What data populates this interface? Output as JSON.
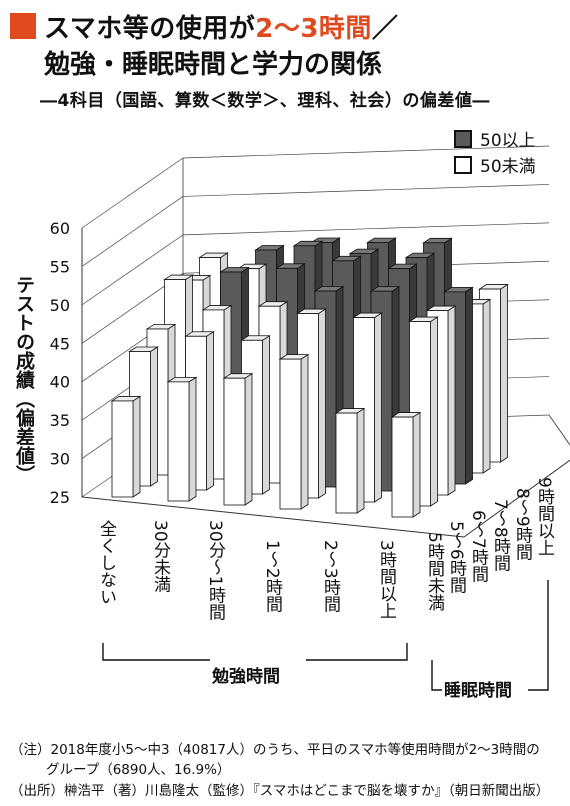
{
  "title": {
    "line1_a": "スマホ等の使用が",
    "line1_b": "2〜3時間",
    "line1_c": "／",
    "line2": "勉強・睡眠時間と学力の関係",
    "subtitle": "―4科目（国語、算数＜数学＞、理科、社会）の偏差値―"
  },
  "colors": {
    "accent": "#e04a1f",
    "dark": "#5a5a5a",
    "light": "#ffffff"
  },
  "legend": [
    {
      "label": "50以上",
      "color": "#5a5a5a"
    },
    {
      "label": "50未満",
      "color": "#ffffff"
    }
  ],
  "notes": {
    "note1": "（注）2018年度小5〜中3（40817人）のうち、平日のスマホ等使用時間が2〜3時間の",
    "note2": "グループ（6890人、16.9%）",
    "note3": "（出所）榊浩平（著）川島隆太（監修）『スマホはどこまで脳を壊すか』（朝日新聞出版）"
  },
  "chart_data": {
    "type": "bar",
    "subtype": "3d-bar",
    "ylabel": "テストの成績（偏差値）",
    "ylim": [
      25,
      60
    ],
    "yticks": [
      25,
      30,
      35,
      40,
      45,
      50,
      55,
      60
    ],
    "xlabel": "勉強時間",
    "zlabel": "睡眠時間",
    "x_categories": [
      "全くしない",
      "30分未満",
      "30分〜1時間",
      "1〜2時間",
      "2〜3時間",
      "3時間以上"
    ],
    "z_categories": [
      "5時間未満",
      "5〜6時間",
      "6〜7時間",
      "7〜8時間",
      "8〜9時間",
      "9時間以上"
    ],
    "values": [
      [
        37.5,
        40.5,
        41.5,
        44.5,
        38,
        38
      ],
      [
        42.5,
        45,
        45,
        49,
        49,
        49
      ],
      [
        44,
        47,
        48,
        50.5,
        51,
        49
      ],
      [
        49,
        50.5,
        51.5,
        53,
        52.5,
        50
      ],
      [
        47.5,
        49.5,
        53,
        52.5,
        52.5,
        47
      ],
      [
        49,
        50.5,
        52,
        52.5,
        53,
        47.5
      ]
    ],
    "grid": true
  }
}
